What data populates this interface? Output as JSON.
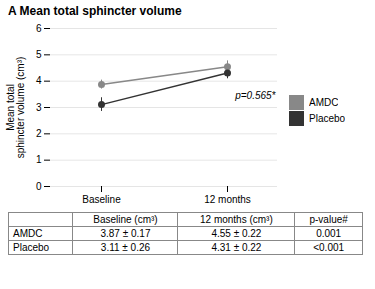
{
  "chart_data": {
    "type": "line",
    "title": "A Mean total sphincter volume",
    "ylabel": "Mean total\nsphincter volume (cm³)",
    "categories": [
      "Baseline",
      "12 months"
    ],
    "series": [
      {
        "name": "AMDC",
        "color": "#888888",
        "values": [
          3.87,
          4.55
        ],
        "errors": [
          0.17,
          0.22
        ],
        "marker": "o"
      },
      {
        "name": "Placebo",
        "color": "#333333",
        "values": [
          3.11,
          4.31
        ],
        "errors": [
          0.26,
          0.22
        ],
        "marker": "o"
      }
    ],
    "ylim": [
      0,
      6
    ],
    "yticks": [
      0,
      1,
      2,
      3,
      4,
      5,
      6
    ],
    "grid": true,
    "legend": "right",
    "annotation": "p=0.565*",
    "table": {
      "headers": [
        "",
        "Baseline (cm³)",
        "12 months (cm³)",
        "p-value#"
      ],
      "rows": [
        [
          "AMDC",
          "3.87 ± 0.17",
          "4.55 ± 0.22",
          "0.001"
        ],
        [
          "Placebo",
          "3.11 ± 0.26",
          "4.31 ± 0.22",
          "<0.001"
        ]
      ]
    }
  }
}
